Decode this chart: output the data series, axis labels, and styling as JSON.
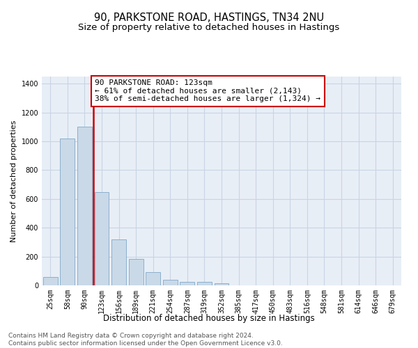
{
  "title1": "90, PARKSTONE ROAD, HASTINGS, TN34 2NU",
  "title2": "Size of property relative to detached houses in Hastings",
  "xlabel": "Distribution of detached houses by size in Hastings",
  "ylabel": "Number of detached properties",
  "categories": [
    "25sqm",
    "58sqm",
    "90sqm",
    "123sqm",
    "156sqm",
    "189sqm",
    "221sqm",
    "254sqm",
    "287sqm",
    "319sqm",
    "352sqm",
    "385sqm",
    "417sqm",
    "450sqm",
    "483sqm",
    "516sqm",
    "548sqm",
    "581sqm",
    "614sqm",
    "646sqm",
    "679sqm"
  ],
  "values": [
    60,
    1020,
    1100,
    650,
    320,
    185,
    90,
    40,
    25,
    25,
    15,
    0,
    0,
    0,
    0,
    0,
    0,
    0,
    0,
    0,
    0
  ],
  "bar_color": "#c9d9e8",
  "bar_edge_color": "#7fa8c9",
  "vline_color": "#cc0000",
  "vline_x_index": 3,
  "annotation_line1": "90 PARKSTONE ROAD: 123sqm",
  "annotation_line2": "← 61% of detached houses are smaller (2,143)",
  "annotation_line3": "38% of semi-detached houses are larger (1,324) →",
  "annotation_box_color": "white",
  "annotation_box_edge_color": "#cc0000",
  "ylim": [
    0,
    1450
  ],
  "yticks": [
    0,
    200,
    400,
    600,
    800,
    1000,
    1200,
    1400
  ],
  "grid_color": "#c8d4e4",
  "background_color": "#e8eef6",
  "footer_text": "Contains HM Land Registry data © Crown copyright and database right 2024.\nContains public sector information licensed under the Open Government Licence v3.0.",
  "title1_fontsize": 10.5,
  "title2_fontsize": 9.5,
  "xlabel_fontsize": 8.5,
  "ylabel_fontsize": 8,
  "tick_fontsize": 7,
  "annotation_fontsize": 8,
  "footer_fontsize": 6.5
}
